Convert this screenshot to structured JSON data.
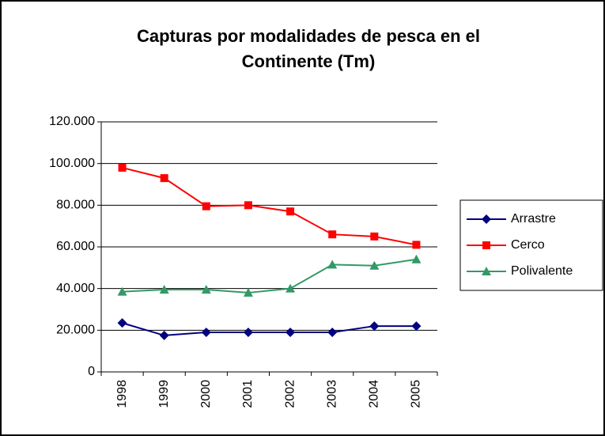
{
  "chart_data": {
    "type": "line",
    "title": "Capturas por modalidades de pesca en el Continente (Tm)",
    "categories": [
      "1998",
      "1999",
      "2000",
      "2001",
      "2002",
      "2003",
      "2004",
      "2005"
    ],
    "series": [
      {
        "name": "Arrastre",
        "color": "#000080",
        "marker": "diamond",
        "values": [
          23500,
          17500,
          19000,
          19000,
          19000,
          19000,
          22000,
          22000
        ]
      },
      {
        "name": "Cerco",
        "color": "#ff0000",
        "marker": "square",
        "values": [
          98000,
          93000,
          79500,
          80000,
          77000,
          66000,
          65000,
          61000
        ]
      },
      {
        "name": "Polivalente",
        "color": "#339966",
        "marker": "triangle",
        "values": [
          38500,
          39500,
          39500,
          38000,
          40000,
          51500,
          51000,
          54000
        ]
      }
    ],
    "ylim": [
      0,
      120000
    ],
    "yticks": [
      0,
      {
        "value": 20000,
        "label": "20.000"
      },
      {
        "value": 40000,
        "label": "40.000"
      },
      {
        "value": 60000,
        "label": "60.000"
      },
      {
        "value": 80000,
        "label": "80.000"
      },
      {
        "value": 100000,
        "label": "100.000"
      },
      {
        "value": 120000,
        "label": "120.000"
      }
    ],
    "grid": true,
    "legend": "right"
  }
}
